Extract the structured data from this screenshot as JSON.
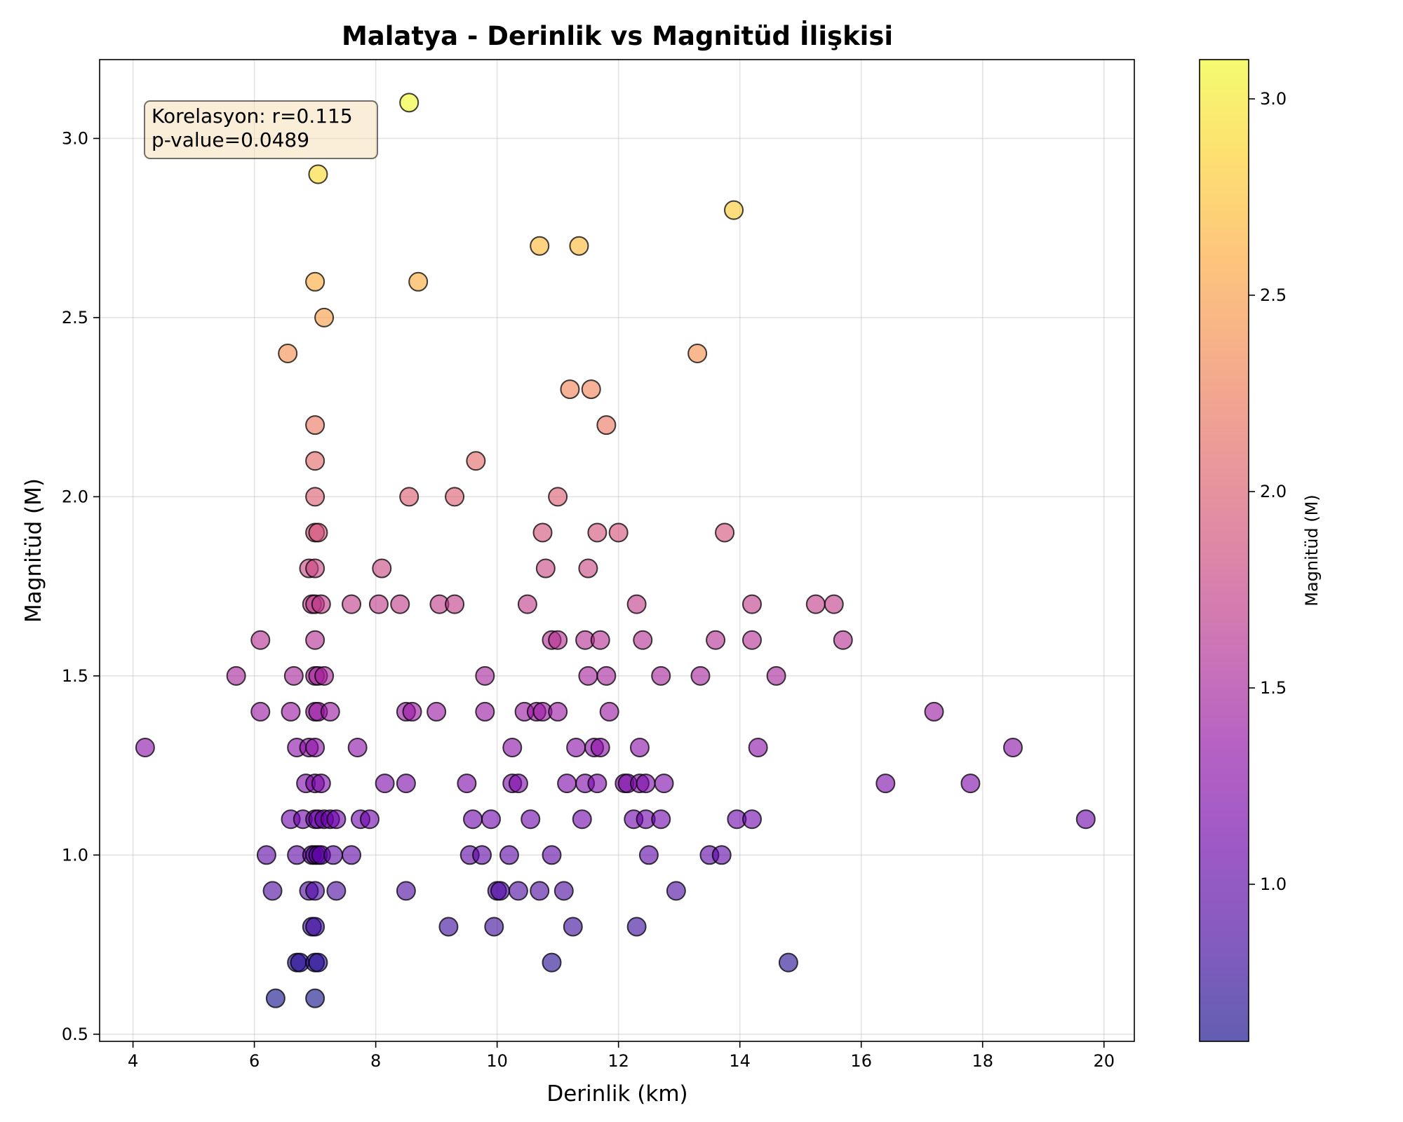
{
  "chart_data": {
    "type": "scatter",
    "title": "Malatya - Derinlik vs Magnitüd İlişkisi",
    "xlabel": "Derinlik (km)",
    "ylabel": "Magnitüd (M)",
    "xlim": [
      3.45,
      20.5
    ],
    "ylim": [
      0.48,
      3.22
    ],
    "xticks": [
      4,
      6,
      8,
      10,
      12,
      14,
      16,
      18,
      20
    ],
    "xtick_labels": [
      "4",
      "6",
      "8",
      "10",
      "12",
      "14",
      "16",
      "18",
      "20"
    ],
    "yticks": [
      0.5,
      1.0,
      1.5,
      2.0,
      2.5,
      3.0
    ],
    "ytick_labels": [
      "0.5",
      "1.0",
      "1.5",
      "2.0",
      "2.5",
      "3.0"
    ],
    "grid": true,
    "colorbar": {
      "label": "Magnitüd (M)",
      "colormap": "plasma",
      "range": [
        0.6,
        3.1
      ],
      "ticks": [
        1.0,
        1.5,
        2.0,
        2.5,
        3.0
      ],
      "tick_labels": [
        "1.0",
        "1.5",
        "2.0",
        "2.5",
        "3.0"
      ]
    },
    "annotation": {
      "lines": [
        "Korelasyon: r=0.115",
        "p-value=0.0489"
      ],
      "location": "top-left"
    },
    "points": [
      [
        4.2,
        1.3
      ],
      [
        5.7,
        1.5
      ],
      [
        6.1,
        1.6
      ],
      [
        6.1,
        1.4
      ],
      [
        6.2,
        1.0
      ],
      [
        6.3,
        0.9
      ],
      [
        6.35,
        0.6
      ],
      [
        6.55,
        2.4
      ],
      [
        6.6,
        1.4
      ],
      [
        6.65,
        1.5
      ],
      [
        6.6,
        1.1
      ],
      [
        6.7,
        1.3
      ],
      [
        6.7,
        1.0
      ],
      [
        6.7,
        0.7
      ],
      [
        6.75,
        0.7
      ],
      [
        6.8,
        1.1
      ],
      [
        6.85,
        1.2
      ],
      [
        6.9,
        1.8
      ],
      [
        6.9,
        1.3
      ],
      [
        6.9,
        0.9
      ],
      [
        6.95,
        1.7
      ],
      [
        6.95,
        1.0
      ],
      [
        6.95,
        0.8
      ],
      [
        7.0,
        2.6
      ],
      [
        7.0,
        2.2
      ],
      [
        7.0,
        2.1
      ],
      [
        7.0,
        2.0
      ],
      [
        7.0,
        1.9
      ],
      [
        7.0,
        1.8
      ],
      [
        7.0,
        1.7
      ],
      [
        7.0,
        1.6
      ],
      [
        7.0,
        1.5
      ],
      [
        7.0,
        1.4
      ],
      [
        7.0,
        1.3
      ],
      [
        7.0,
        1.2
      ],
      [
        7.0,
        1.1
      ],
      [
        7.0,
        1.0
      ],
      [
        7.0,
        0.9
      ],
      [
        7.0,
        0.8
      ],
      [
        7.0,
        0.7
      ],
      [
        7.0,
        0.6
      ],
      [
        7.05,
        2.9
      ],
      [
        7.05,
        1.9
      ],
      [
        7.05,
        1.5
      ],
      [
        7.05,
        1.4
      ],
      [
        7.05,
        1.1
      ],
      [
        7.05,
        1.0
      ],
      [
        7.05,
        0.7
      ],
      [
        7.1,
        1.7
      ],
      [
        7.1,
        1.2
      ],
      [
        7.1,
        1.0
      ],
      [
        7.15,
        2.5
      ],
      [
        7.15,
        1.5
      ],
      [
        7.15,
        1.1
      ],
      [
        7.25,
        1.4
      ],
      [
        7.25,
        1.1
      ],
      [
        7.3,
        1.0
      ],
      [
        7.35,
        1.1
      ],
      [
        7.35,
        0.9
      ],
      [
        7.6,
        1.7
      ],
      [
        7.6,
        1.0
      ],
      [
        7.7,
        1.3
      ],
      [
        7.75,
        1.1
      ],
      [
        7.9,
        1.1
      ],
      [
        8.05,
        1.7
      ],
      [
        8.1,
        1.8
      ],
      [
        8.15,
        1.2
      ],
      [
        8.4,
        1.7
      ],
      [
        8.5,
        1.4
      ],
      [
        8.5,
        1.2
      ],
      [
        8.5,
        0.9
      ],
      [
        8.55,
        3.1
      ],
      [
        8.55,
        2.0
      ],
      [
        8.6,
        1.4
      ],
      [
        8.7,
        2.6
      ],
      [
        9.0,
        1.4
      ],
      [
        9.05,
        1.7
      ],
      [
        9.2,
        0.8
      ],
      [
        9.3,
        2.0
      ],
      [
        9.3,
        1.7
      ],
      [
        9.5,
        1.2
      ],
      [
        9.55,
        1.0
      ],
      [
        9.6,
        1.1
      ],
      [
        9.65,
        2.1
      ],
      [
        9.75,
        1.0
      ],
      [
        9.8,
        1.4
      ],
      [
        9.8,
        1.5
      ],
      [
        9.9,
        1.1
      ],
      [
        9.95,
        0.8
      ],
      [
        10.0,
        0.9
      ],
      [
        10.05,
        0.9
      ],
      [
        10.2,
        1.0
      ],
      [
        10.25,
        1.3
      ],
      [
        10.25,
        1.2
      ],
      [
        10.35,
        1.2
      ],
      [
        10.35,
        0.9
      ],
      [
        10.45,
        1.4
      ],
      [
        10.5,
        1.7
      ],
      [
        10.55,
        1.1
      ],
      [
        10.65,
        1.4
      ],
      [
        10.7,
        2.7
      ],
      [
        10.7,
        0.9
      ],
      [
        10.75,
        1.9
      ],
      [
        10.75,
        1.4
      ],
      [
        10.8,
        1.8
      ],
      [
        10.9,
        1.6
      ],
      [
        10.9,
        1.0
      ],
      [
        10.9,
        0.7
      ],
      [
        11.0,
        2.0
      ],
      [
        11.0,
        1.6
      ],
      [
        11.0,
        1.4
      ],
      [
        11.1,
        0.9
      ],
      [
        11.15,
        1.2
      ],
      [
        11.2,
        2.3
      ],
      [
        11.25,
        0.8
      ],
      [
        11.3,
        1.3
      ],
      [
        11.35,
        2.7
      ],
      [
        11.4,
        1.1
      ],
      [
        11.45,
        1.6
      ],
      [
        11.45,
        1.2
      ],
      [
        11.5,
        1.8
      ],
      [
        11.5,
        1.5
      ],
      [
        11.55,
        2.3
      ],
      [
        11.6,
        1.3
      ],
      [
        11.65,
        1.9
      ],
      [
        11.65,
        1.2
      ],
      [
        11.7,
        1.6
      ],
      [
        11.7,
        1.3
      ],
      [
        11.8,
        2.2
      ],
      [
        11.8,
        1.5
      ],
      [
        11.85,
        1.4
      ],
      [
        12.0,
        1.9
      ],
      [
        12.1,
        1.2
      ],
      [
        12.15,
        1.2
      ],
      [
        12.25,
        1.1
      ],
      [
        12.3,
        0.8
      ],
      [
        12.3,
        1.7
      ],
      [
        12.35,
        1.3
      ],
      [
        12.35,
        1.2
      ],
      [
        12.4,
        1.6
      ],
      [
        12.45,
        1.2
      ],
      [
        12.45,
        1.1
      ],
      [
        12.5,
        1.0
      ],
      [
        12.7,
        1.5
      ],
      [
        12.7,
        1.1
      ],
      [
        12.75,
        1.2
      ],
      [
        12.95,
        0.9
      ],
      [
        13.3,
        2.4
      ],
      [
        13.35,
        1.5
      ],
      [
        13.5,
        1.0
      ],
      [
        13.6,
        1.6
      ],
      [
        13.7,
        1.0
      ],
      [
        13.75,
        1.9
      ],
      [
        13.9,
        2.8
      ],
      [
        13.95,
        1.1
      ],
      [
        14.2,
        1.7
      ],
      [
        14.2,
        1.6
      ],
      [
        14.2,
        1.1
      ],
      [
        14.3,
        1.3
      ],
      [
        14.6,
        1.5
      ],
      [
        14.8,
        0.7
      ],
      [
        15.25,
        1.7
      ],
      [
        15.55,
        1.7
      ],
      [
        15.7,
        1.6
      ],
      [
        16.4,
        1.2
      ],
      [
        17.2,
        1.4
      ],
      [
        17.8,
        1.2
      ],
      [
        18.5,
        1.3
      ],
      [
        19.7,
        1.1
      ]
    ]
  }
}
